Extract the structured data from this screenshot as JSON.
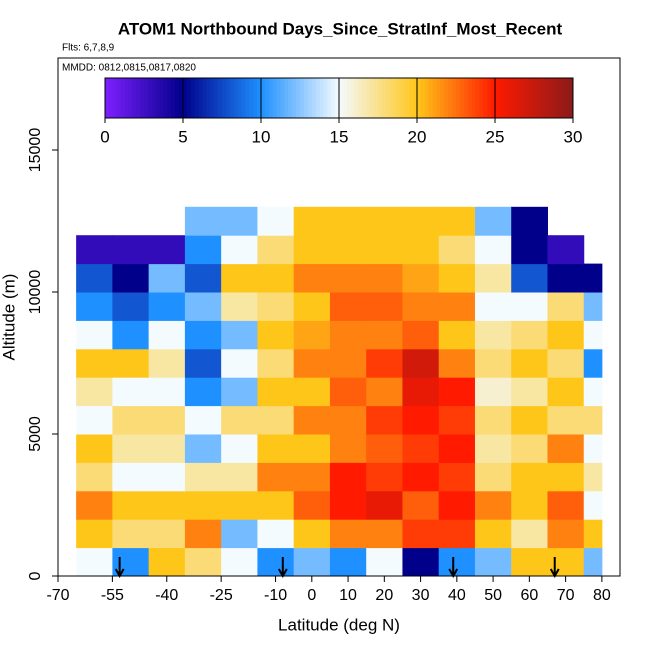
{
  "chart_data": {
    "type": "heatmap",
    "title": "ATOM1 Northbound Days_Since_StratInf_Most_Recent",
    "subtitle": "Flts: 6,7,8,9",
    "annotation": "MMDD: 0812,0815,0817,0820",
    "x_label": "Latitude (deg N)",
    "y_label": "Altitude (m)",
    "xlim": [
      -70,
      85
    ],
    "xticks": [
      -70,
      -55,
      -40,
      -25,
      -10,
      0,
      10,
      20,
      30,
      40,
      50,
      60,
      70,
      80
    ],
    "ylim": [
      0,
      18240
    ],
    "yticks": [
      0,
      5000,
      10000,
      15000
    ],
    "x_bins": [
      -65,
      -55,
      -45,
      -35,
      -25,
      -15,
      -5,
      5,
      15,
      25,
      35,
      45,
      55,
      65,
      75,
      80
    ],
    "y_bins": [
      0,
      1000,
      2000,
      3000,
      4000,
      5000,
      6000,
      7000,
      8000,
      9000,
      10000,
      11000,
      12000,
      13000
    ],
    "zlim": [
      0,
      30
    ],
    "zticks": [
      0,
      5,
      10,
      15,
      20,
      25,
      30
    ],
    "colorscale": [
      "#7f1fff",
      "#00008b",
      "#1e90ff",
      "#f4fbff",
      "#ffc61a",
      "#ff1a00",
      "#8b1a1a"
    ],
    "values": [
      [
        15,
        10,
        20,
        18,
        15,
        10,
        12,
        10,
        15,
        5,
        10,
        12,
        20,
        20,
        12
      ],
      [
        20,
        18,
        18,
        22,
        12,
        15,
        20,
        22,
        22,
        24,
        24,
        20,
        17,
        22,
        20
      ],
      [
        22,
        20,
        20,
        20,
        20,
        20,
        23,
        25,
        26,
        23,
        25,
        22,
        20,
        23,
        15
      ],
      [
        18,
        15,
        15,
        17,
        17,
        22,
        22,
        25,
        24,
        25,
        24,
        18,
        20,
        20,
        17
      ],
      [
        20,
        17,
        17,
        12,
        15,
        20,
        20,
        22,
        23,
        24,
        25,
        17,
        18,
        22,
        15
      ],
      [
        15,
        18,
        18,
        15,
        18,
        18,
        22,
        22,
        24,
        25,
        24,
        18,
        20,
        18,
        18
      ],
      [
        17,
        15,
        15,
        10,
        12,
        20,
        20,
        23,
        22,
        26,
        25,
        16,
        17,
        20,
        15
      ],
      [
        20,
        20,
        17,
        8,
        15,
        18,
        22,
        22,
        24,
        27,
        22,
        18,
        20,
        18,
        10
      ],
      [
        15,
        10,
        15,
        10,
        12,
        20,
        21,
        22,
        22,
        23,
        20,
        17,
        18,
        20,
        15
      ],
      [
        10,
        8,
        10,
        12,
        17,
        18,
        20,
        23,
        23,
        22,
        22,
        15,
        15,
        18,
        12
      ],
      [
        8,
        5,
        12,
        8,
        20,
        20,
        22,
        22,
        22,
        21,
        20,
        17,
        8,
        5,
        5
      ],
      [
        3,
        3,
        3,
        10,
        15,
        18,
        20,
        20,
        20,
        20,
        18,
        15,
        5,
        3,
        null
      ],
      [
        null,
        null,
        null,
        12,
        12,
        15,
        20,
        20,
        20,
        20,
        20,
        12,
        5,
        null,
        null
      ]
    ],
    "markers_x": [
      -53,
      -8,
      39,
      67
    ]
  }
}
